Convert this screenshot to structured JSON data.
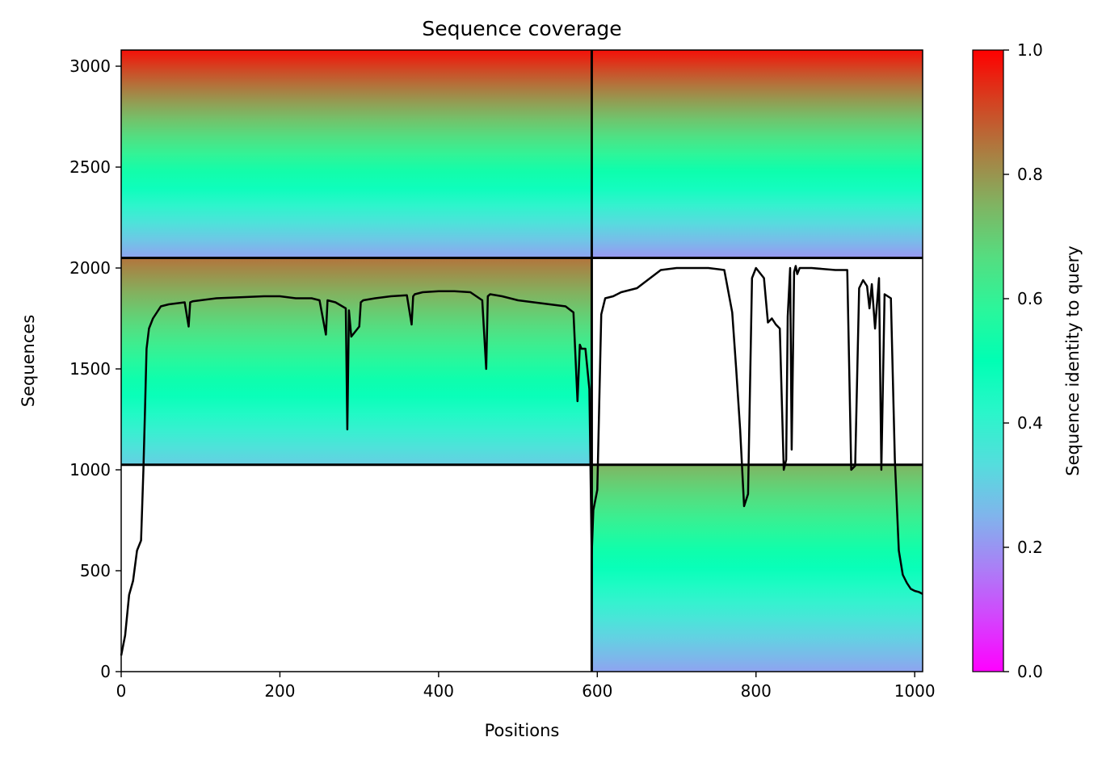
{
  "chart_data": {
    "type": "heatmap",
    "title": "Sequence coverage",
    "xlabel": "Positions",
    "ylabel": "Sequences",
    "xlim": [
      0,
      1010
    ],
    "ylim": [
      0,
      3080
    ],
    "x_ticks": [
      0,
      200,
      400,
      600,
      800,
      1000
    ],
    "y_ticks": [
      0,
      500,
      1000,
      1500,
      2000,
      2500,
      3000
    ],
    "colorbar": {
      "label": "Sequence identity to query",
      "range": [
        0,
        1
      ],
      "ticks": [
        "0.0",
        "0.2",
        "0.4",
        "0.6",
        "0.8",
        "1.0"
      ],
      "colormap": "rainbow"
    },
    "block_dividers": {
      "x": [
        593
      ],
      "y": [
        1025,
        2050
      ]
    },
    "blocks": [
      {
        "name": "top-left",
        "x": [
          0,
          593
        ],
        "y": [
          2050,
          3080
        ],
        "identity_top": 0.98,
        "identity_bottom": 0.22
      },
      {
        "name": "top-right",
        "x": [
          593,
          1010
        ],
        "y": [
          2050,
          3080
        ],
        "identity_top": 0.98,
        "identity_bottom": 0.2
      },
      {
        "name": "middle-left",
        "x": [
          0,
          593
        ],
        "y": [
          1025,
          2050
        ],
        "identity_top": 0.85,
        "identity_bottom": 0.3
      },
      {
        "name": "bottom-right",
        "x": [
          593,
          1010
        ],
        "y": [
          0,
          1025
        ],
        "identity_top": 0.75,
        "identity_bottom": 0.22
      }
    ],
    "coverage_line": {
      "x": [
        0,
        5,
        10,
        15,
        20,
        25,
        28,
        30,
        32,
        35,
        40,
        45,
        50,
        60,
        70,
        80,
        85,
        87,
        90,
        100,
        120,
        150,
        180,
        200,
        220,
        240,
        250,
        258,
        260,
        270,
        283,
        285,
        287,
        290,
        300,
        302,
        305,
        320,
        340,
        360,
        366,
        368,
        370,
        380,
        400,
        420,
        440,
        455,
        460,
        462,
        465,
        480,
        500,
        520,
        540,
        560,
        570,
        575,
        578,
        580,
        585,
        590,
        593,
        595,
        600,
        605,
        610,
        620,
        630,
        640,
        650,
        660,
        680,
        700,
        720,
        740,
        760,
        770,
        775,
        780,
        785,
        790,
        795,
        800,
        810,
        815,
        820,
        825,
        830,
        835,
        838,
        840,
        843,
        845,
        848,
        850,
        852,
        855,
        870,
        900,
        915,
        920,
        925,
        930,
        935,
        940,
        943,
        946,
        950,
        955,
        958,
        962,
        970,
        975,
        980,
        985,
        990,
        995,
        1000,
        1005,
        1010
      ],
      "y": [
        80,
        180,
        380,
        450,
        600,
        650,
        1000,
        1300,
        1600,
        1700,
        1750,
        1780,
        1810,
        1820,
        1825,
        1830,
        1710,
        1830,
        1835,
        1840,
        1850,
        1855,
        1860,
        1860,
        1850,
        1850,
        1840,
        1670,
        1840,
        1830,
        1800,
        1200,
        1790,
        1660,
        1710,
        1830,
        1840,
        1850,
        1860,
        1865,
        1720,
        1860,
        1870,
        1880,
        1885,
        1885,
        1880,
        1840,
        1500,
        1860,
        1870,
        1860,
        1840,
        1830,
        1820,
        1810,
        1780,
        1340,
        1620,
        1600,
        1600,
        1400,
        580,
        800,
        900,
        1770,
        1850,
        1860,
        1880,
        1890,
        1900,
        1930,
        1990,
        2000,
        2000,
        2000,
        1990,
        1780,
        1500,
        1200,
        820,
        880,
        1950,
        2000,
        1950,
        1730,
        1750,
        1720,
        1700,
        1000,
        1050,
        1760,
        2000,
        1100,
        1980,
        2010,
        1970,
        2000,
        2000,
        1990,
        1990,
        1000,
        1020,
        1900,
        1940,
        1910,
        1800,
        1920,
        1700,
        1950,
        1000,
        1870,
        1850,
        1050,
        600,
        480,
        440,
        410,
        400,
        395,
        385
      ]
    }
  }
}
